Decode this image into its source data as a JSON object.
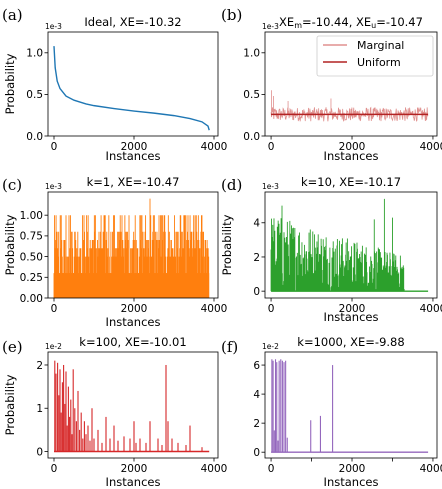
{
  "chart_data": [
    {
      "id": "a",
      "letter": "(a)",
      "type": "line",
      "title": "Ideal, XE=-10.32",
      "sci_label": "1e-3",
      "xlabel": "",
      "ylabel": "Probability",
      "xlim": [
        -150,
        4100
      ],
      "ylim": [
        0,
        1.25
      ],
      "xticks": [
        0,
        2000,
        4000
      ],
      "xticklabels": [
        "0",
        "2000",
        "4000"
      ],
      "yticks": [
        0.0,
        0.5,
        1.0
      ],
      "yticklabels": [
        "0.0",
        "0.5",
        "1.0"
      ],
      "color": "#1f77b4",
      "render": "line",
      "series": [
        {
          "x": [
            0,
            30,
            80,
            150,
            300,
            500,
            800,
            1000,
            1500,
            2000,
            2500,
            3000,
            3400,
            3700,
            3850,
            3880
          ],
          "y": [
            1.08,
            0.82,
            0.66,
            0.57,
            0.48,
            0.43,
            0.385,
            0.365,
            0.33,
            0.3,
            0.275,
            0.245,
            0.21,
            0.17,
            0.12,
            0.07
          ]
        }
      ]
    },
    {
      "id": "b",
      "letter": "(b)",
      "type": "line",
      "title_parts": [
        {
          "t": "XE"
        },
        {
          "t": "m",
          "sub": true
        },
        {
          "t": "=-10.44, XE"
        },
        {
          "t": "u",
          "sub": true
        },
        {
          "t": "=-10.47"
        }
      ],
      "sci_label": "1e-3",
      "xlabel": "",
      "ylabel": "",
      "xlim": [
        -150,
        4100
      ],
      "ylim": [
        0,
        1.25
      ],
      "xticks": [
        0,
        2000,
        4000
      ],
      "xticklabels": [
        "0",
        "2000",
        "4000"
      ],
      "yticks": [
        0.0,
        0.5,
        1.0
      ],
      "yticklabels": [
        "0.0",
        "0.5",
        "1.0"
      ],
      "render": "band",
      "band": {
        "n": 3880,
        "center": 0.26,
        "amp": 0.085,
        "spikes": [
          [
            10,
            0.55
          ],
          [
            60,
            0.48
          ],
          [
            420,
            0.42
          ],
          [
            1480,
            0.45
          ]
        ],
        "color": "#e0918f"
      },
      "uniform": {
        "y": 0.26,
        "color": "#b22222"
      },
      "legend": [
        {
          "label": "Marginal",
          "color": "#e0918f"
        },
        {
          "label": "Uniform",
          "color": "#b22222"
        }
      ]
    },
    {
      "id": "c",
      "letter": "(c)",
      "type": "bar",
      "title": "k=1, XE=-10.47",
      "sci_label": "1e-3",
      "xlabel": "Instances",
      "ylabel": "Probability",
      "xlim": [
        -150,
        4100
      ],
      "ylim": [
        0,
        1.28
      ],
      "xticks": [
        0,
        2000,
        4000
      ],
      "xticklabels": [
        "0",
        "2000",
        "4000"
      ],
      "yticks": [
        0.0,
        0.25,
        0.5,
        0.75,
        1.0
      ],
      "yticklabels": [
        "0.00",
        "0.25",
        "0.50",
        "0.75",
        "1.00"
      ],
      "color": "#ff7f0e",
      "render": "dense",
      "dense": {
        "n": 3880,
        "floor": 0.3,
        "levels": [
          0.3,
          0.5,
          0.6,
          0.7,
          0.8,
          1.0
        ],
        "peaks": [
          [
            2400,
            1.2
          ],
          [
            3500,
            1.0
          ],
          [
            1250,
            1.0
          ],
          [
            300,
            1.0
          ],
          [
            1700,
            1.0
          ]
        ]
      }
    },
    {
      "id": "d",
      "letter": "(d)",
      "type": "bar",
      "title": "k=10, XE=-10.17",
      "sci_label": "1e-3",
      "xlabel": "",
      "ylabel": "Probability",
      "xlim": [
        -150,
        4100
      ],
      "ylim": [
        -0.4,
        5.8
      ],
      "xticks": [
        0,
        2000,
        4000
      ],
      "xticklabels": [
        "0",
        "2000",
        "4000"
      ],
      "yticks": [
        0,
        2,
        4
      ],
      "yticklabels": [
        "0",
        "2",
        "4"
      ],
      "color": "#2ca02c",
      "render": "spikes",
      "spikes": {
        "n": 3880,
        "decay_to": 0.35,
        "max": 4.6,
        "peaks": [
          [
            2800,
            5.4
          ],
          [
            2550,
            4.2
          ],
          [
            270,
            5.0
          ],
          [
            3000,
            4.3
          ]
        ]
      }
    },
    {
      "id": "e",
      "letter": "(e)",
      "type": "bar",
      "title": "k=100, XE=-10.01",
      "sci_label": "1e-2",
      "xlabel": "Instances",
      "ylabel": "Probability",
      "xlim": [
        -150,
        4100
      ],
      "ylim": [
        -0.15,
        2.3
      ],
      "xticks": [
        0,
        2000,
        4000
      ],
      "xticklabels": [
        "0",
        "2000",
        "4000"
      ],
      "yticks": [
        0,
        1,
        2
      ],
      "yticklabels": [
        "0",
        "1",
        "2"
      ],
      "color": "#d62728",
      "render": "sticks",
      "sticks": [
        [
          20,
          2.1
        ],
        [
          50,
          1.8
        ],
        [
          90,
          2.05
        ],
        [
          120,
          1.3
        ],
        [
          150,
          1.9
        ],
        [
          180,
          0.9
        ],
        [
          210,
          1.6
        ],
        [
          240,
          2.0
        ],
        [
          270,
          1.1
        ],
        [
          300,
          1.85
        ],
        [
          330,
          0.6
        ],
        [
          360,
          1.5
        ],
        [
          390,
          0.8
        ],
        [
          420,
          1.2
        ],
        [
          450,
          0.4
        ],
        [
          480,
          1.9
        ],
        [
          520,
          1.0
        ],
        [
          560,
          0.7
        ],
        [
          600,
          1.4
        ],
        [
          640,
          0.5
        ],
        [
          680,
          0.9
        ],
        [
          720,
          0.3
        ],
        [
          760,
          0.7
        ],
        [
          800,
          0.4
        ],
        [
          850,
          0.6
        ],
        [
          900,
          0.25
        ],
        [
          950,
          1.0
        ],
        [
          1000,
          0.3
        ],
        [
          1100,
          0.5
        ],
        [
          1200,
          0.2
        ],
        [
          1300,
          0.8
        ],
        [
          1400,
          0.3
        ],
        [
          1500,
          0.6
        ],
        [
          1600,
          0.25
        ],
        [
          1750,
          0.35
        ],
        [
          1900,
          0.3
        ],
        [
          2000,
          0.7
        ],
        [
          2050,
          0.2
        ],
        [
          2150,
          0.3
        ],
        [
          2300,
          0.2
        ],
        [
          2400,
          0.7
        ],
        [
          2600,
          0.3
        ],
        [
          2700,
          0.15
        ],
        [
          2800,
          2.0
        ],
        [
          2850,
          0.7
        ],
        [
          2950,
          0.3
        ],
        [
          3100,
          0.2
        ],
        [
          3300,
          0.15
        ],
        [
          3400,
          0.6
        ],
        [
          3700,
          0.1
        ]
      ]
    },
    {
      "id": "f",
      "letter": "(f)",
      "type": "bar",
      "title": "k=1000, XE=-9.88",
      "sci_label": "1e-2",
      "xlabel": "Instances",
      "ylabel": "",
      "xlim": [
        -150,
        4100
      ],
      "ylim": [
        -0.4,
        6.9
      ],
      "xticks": [
        0,
        1000,
        2000,
        3000,
        4000
      ],
      "xticklabels": [
        "0",
        "",
        "2000",
        "",
        "4000"
      ],
      "yticks": [
        0,
        2,
        4,
        6
      ],
      "yticklabels": [
        "0",
        "2",
        "4",
        "6"
      ],
      "color": "#9467bd",
      "render": "sticks",
      "sticks": [
        [
          20,
          6.4
        ],
        [
          50,
          6.3
        ],
        [
          80,
          1.5
        ],
        [
          110,
          6.4
        ],
        [
          140,
          6.2
        ],
        [
          170,
          0.8
        ],
        [
          200,
          6.3
        ],
        [
          240,
          6.4
        ],
        [
          280,
          6.3
        ],
        [
          320,
          6.2
        ],
        [
          360,
          6.3
        ],
        [
          400,
          1.0
        ],
        [
          980,
          2.2
        ],
        [
          1220,
          2.5
        ],
        [
          1520,
          6.0
        ]
      ]
    }
  ]
}
